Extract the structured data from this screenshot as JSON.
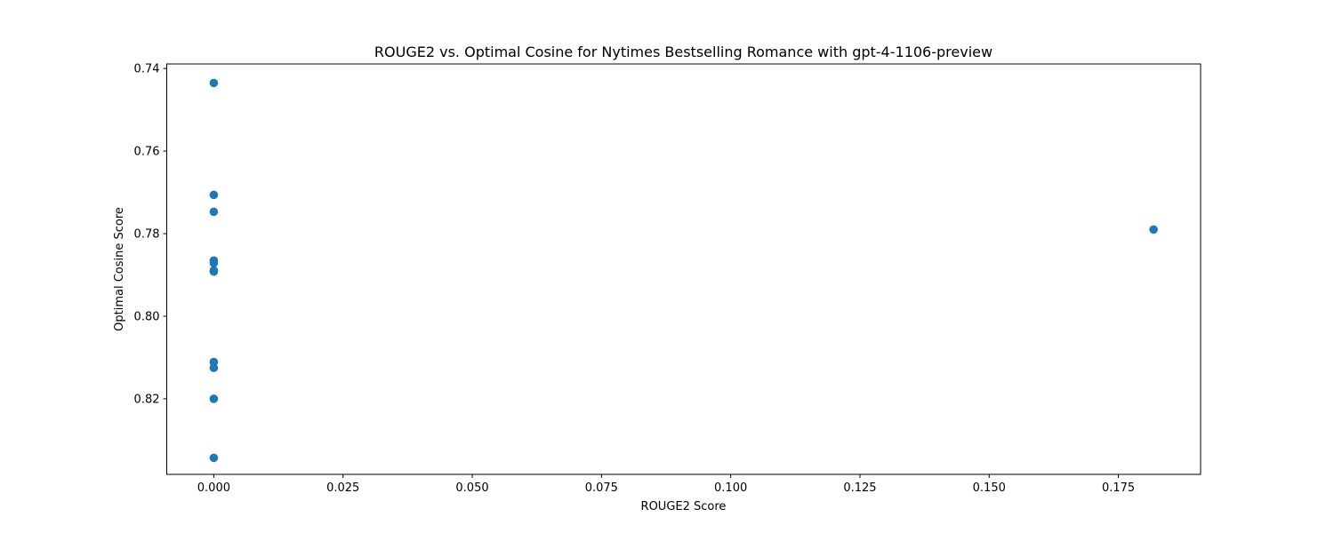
{
  "chart_data": {
    "type": "scatter",
    "title": "ROUGE2 vs. Optimal Cosine for Nytimes Bestselling Romance with gpt-4-1106-preview",
    "xlabel": "ROUGE2 Score",
    "ylabel": "Optimal Cosine Score",
    "xlim": [
      -0.0091,
      0.1909
    ],
    "ylim": [
      0.7389,
      0.8383
    ],
    "y_inverted": true,
    "x_ticks": [
      0.0,
      0.025,
      0.05,
      0.075,
      0.1,
      0.125,
      0.15,
      0.175
    ],
    "x_tick_labels": [
      "0.000",
      "0.025",
      "0.050",
      "0.075",
      "0.100",
      "0.125",
      "0.150",
      "0.175"
    ],
    "y_ticks": [
      0.74,
      0.76,
      0.78,
      0.8,
      0.82
    ],
    "y_tick_labels": [
      "0.74",
      "0.76",
      "0.78",
      "0.80",
      "0.82"
    ],
    "grid": false,
    "marker_color": "#1f77b4",
    "points": [
      {
        "x": 0.0,
        "y": 0.7435
      },
      {
        "x": 0.0,
        "y": 0.7706
      },
      {
        "x": 0.0,
        "y": 0.7747
      },
      {
        "x": 0.0,
        "y": 0.7865
      },
      {
        "x": 0.0,
        "y": 0.7871
      },
      {
        "x": 0.0,
        "y": 0.7889
      },
      {
        "x": 0.0,
        "y": 0.7892
      },
      {
        "x": 0.0,
        "y": 0.8111
      },
      {
        "x": 0.0,
        "y": 0.8125
      },
      {
        "x": 0.0,
        "y": 0.82
      },
      {
        "x": 0.0,
        "y": 0.8343
      },
      {
        "x": 0.1818,
        "y": 0.779
      }
    ]
  }
}
